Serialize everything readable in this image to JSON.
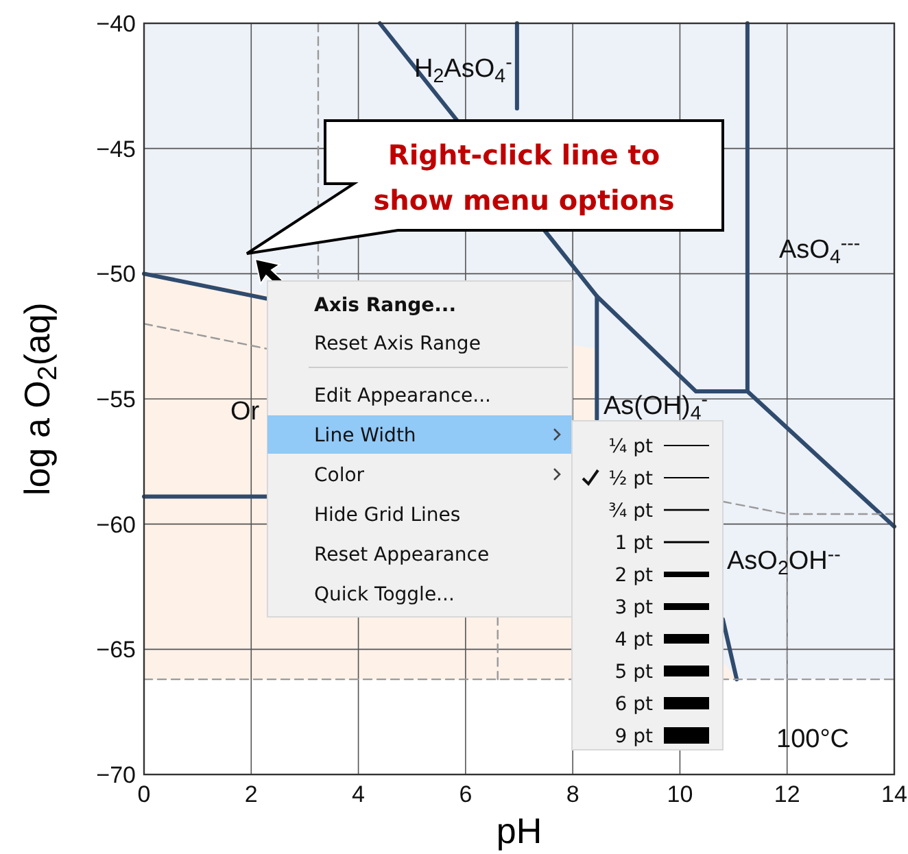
{
  "chart_data": {
    "type": "line",
    "xlabel": "pH",
    "ylabel": "log a O$_{2}$(aq)",
    "xlim": [
      0,
      14
    ],
    "ylim": [
      -70,
      -40
    ],
    "xticks": [
      0,
      2,
      4,
      6,
      8,
      10,
      12,
      14
    ],
    "yticks": [
      {
        "value": -70,
        "label": "−70"
      },
      {
        "value": -65,
        "label": "−65"
      },
      {
        "value": -60,
        "label": "−60"
      },
      {
        "value": -55,
        "label": "−55"
      },
      {
        "value": -50,
        "label": "−50"
      },
      {
        "value": -45,
        "label": "−45"
      },
      {
        "value": -40,
        "label": "−40"
      }
    ],
    "grid": true,
    "marker": "none",
    "bands": [
      {
        "axis": "y",
        "from": -66.2,
        "to": -40,
        "color": "#edf1f8"
      }
    ],
    "series": [
      {
        "color": "#2f4b6e",
        "x": [
          0,
          2.3
        ],
        "values": [
          -50,
          -51
        ]
      },
      {
        "color": "#2f4b6e",
        "x": [
          0,
          2.3
        ],
        "values": [
          -58.9,
          -58.9
        ]
      },
      {
        "color": "#2f4b6e",
        "x": [
          4.4,
          8.45,
          10.3,
          11.26,
          14
        ],
        "values": [
          -40,
          -50.9,
          -54.7,
          -54.7,
          -60.1
        ]
      },
      {
        "color": "#2f4b6e",
        "x": [
          8.45,
          8.45
        ],
        "values": [
          -50.9,
          -55.8
        ]
      },
      {
        "color": "#2f4b6e",
        "x": [
          10.8,
          11.06
        ],
        "values": [
          -63.8,
          -66.2
        ]
      },
      {
        "color": "#2f4b6e",
        "x": [
          11.26,
          11.26
        ],
        "values": [
          -54.7,
          -40
        ]
      },
      {
        "color": "#2f4b6e",
        "x": [
          6.96,
          6.96
        ],
        "values": [
          -40,
          -43.4
        ]
      },
      {
        "color": "#9a9a9a",
        "line_style": "dashed",
        "x": [
          3.25,
          3.25
        ],
        "values": [
          -40,
          -50.2
        ]
      },
      {
        "color": "#9a9a9a",
        "line_style": "dashed",
        "x": [
          0,
          2.3
        ],
        "values": [
          -52,
          -53
        ]
      },
      {
        "color": "#9a9a9a",
        "line_style": "dashed",
        "x": [
          0,
          14
        ],
        "values": [
          -66.2,
          -66.2
        ]
      },
      {
        "color": "#9a9a9a",
        "line_style": "dashed",
        "x": [
          6.6,
          6.6
        ],
        "values": [
          -63.7,
          -66.2
        ]
      },
      {
        "color": "#9a9a9a",
        "line_style": "dashed",
        "x": [
          10.8,
          12,
          14
        ],
        "values": [
          -59.1,
          -59.6,
          -59.6
        ]
      },
      {
        "color": "#9a9a9a",
        "line_style": "dashed",
        "x": [
          12,
          12
        ],
        "values": [
          -59.6,
          -66.2
        ]
      }
    ],
    "annotations": [
      "H$_{2}$AsO$_{4}$$^{-}$",
      "AsO$_{4}$$^{---}$",
      "As(OH)$_{4}$$^{-}$",
      "AsO$_{2}$OH$^{--}$",
      "Or",
      "100°C",
      "Right-click line to show menu options",
      "Axis Range...",
      "Reset Axis Range",
      "Edit Appearance...",
      "Line Width",
      "Color",
      "Hide Grid Lines",
      "Reset Appearance",
      "Quick Toggle...",
      "¼ pt",
      "½ pt",
      "¾ pt",
      "1 pt",
      "2 pt",
      "3 pt",
      "4 pt",
      "5 pt",
      "6 pt",
      "9 pt"
    ]
  }
}
